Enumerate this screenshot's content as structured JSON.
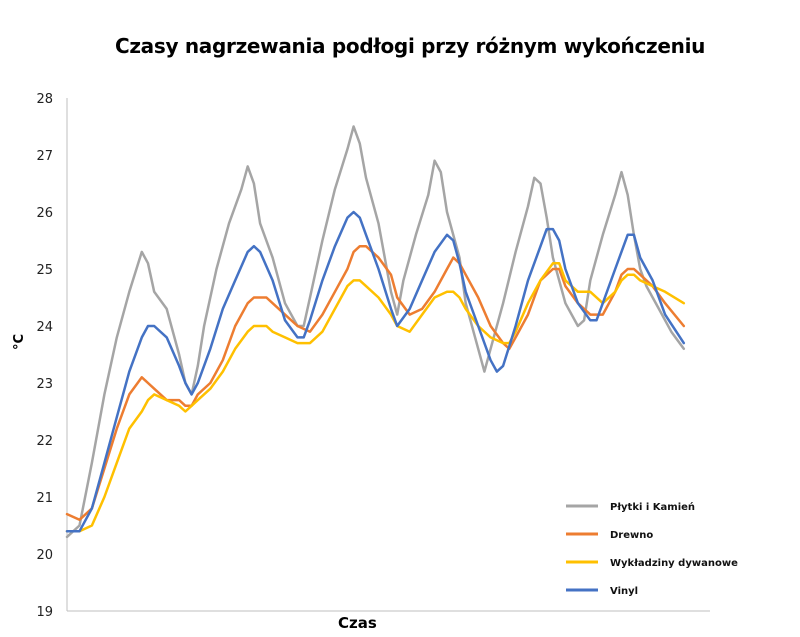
{
  "chart_data": {
    "type": "line",
    "title": "Czasy nagrzewania podłogi przy różnym wykończeniu",
    "xlabel": "Czas",
    "ylabel": "°C",
    "ylim": [
      19,
      28
    ],
    "yticks": [
      "19",
      "20",
      "21",
      "22",
      "23",
      "24",
      "25",
      "26",
      "27",
      "28"
    ],
    "xlim": [
      0,
      100
    ],
    "grid": false,
    "legend": "right",
    "series": [
      {
        "name": "Płytki i Kamień",
        "color": "#a5a5a5",
        "points": [
          [
            0,
            20.3
          ],
          [
            2,
            20.5
          ],
          [
            4,
            21.6
          ],
          [
            6,
            22.8
          ],
          [
            8,
            23.8
          ],
          [
            10,
            24.6
          ],
          [
            12,
            25.3
          ],
          [
            13,
            25.1
          ],
          [
            14,
            24.6
          ],
          [
            16,
            24.3
          ],
          [
            18,
            23.5
          ],
          [
            19,
            23.0
          ],
          [
            20,
            22.8
          ],
          [
            21,
            23.3
          ],
          [
            22,
            24.0
          ],
          [
            24,
            25.0
          ],
          [
            26,
            25.8
          ],
          [
            28,
            26.4
          ],
          [
            29,
            26.8
          ],
          [
            30,
            26.5
          ],
          [
            31,
            25.8
          ],
          [
            33,
            25.2
          ],
          [
            35,
            24.4
          ],
          [
            37,
            24.0
          ],
          [
            38,
            24.0
          ],
          [
            39,
            24.5
          ],
          [
            41,
            25.5
          ],
          [
            43,
            26.4
          ],
          [
            45,
            27.1
          ],
          [
            46,
            27.5
          ],
          [
            47,
            27.2
          ],
          [
            48,
            26.6
          ],
          [
            50,
            25.8
          ],
          [
            52,
            24.6
          ],
          [
            53,
            24.2
          ],
          [
            54,
            24.8
          ],
          [
            56,
            25.6
          ],
          [
            58,
            26.3
          ],
          [
            59,
            26.9
          ],
          [
            60,
            26.7
          ],
          [
            61,
            26.0
          ],
          [
            63,
            25.2
          ],
          [
            64,
            24.4
          ],
          [
            66,
            23.6
          ],
          [
            67,
            23.2
          ],
          [
            68,
            23.6
          ],
          [
            70,
            24.4
          ],
          [
            72,
            25.3
          ],
          [
            74,
            26.1
          ],
          [
            75,
            26.6
          ],
          [
            76,
            26.5
          ],
          [
            77,
            25.9
          ],
          [
            78,
            25.2
          ],
          [
            80,
            24.4
          ],
          [
            82,
            24.0
          ],
          [
            83,
            24.1
          ],
          [
            84,
            24.8
          ],
          [
            86,
            25.6
          ],
          [
            88,
            26.3
          ],
          [
            89,
            26.7
          ],
          [
            90,
            26.3
          ],
          [
            91,
            25.6
          ],
          [
            92,
            25.0
          ],
          [
            93,
            24.7
          ],
          [
            95,
            24.3
          ],
          [
            97,
            23.9
          ],
          [
            99,
            23.6
          ]
        ]
      },
      {
        "name": "Drewno",
        "color": "#ed7d31",
        "points": [
          [
            0,
            20.7
          ],
          [
            2,
            20.6
          ],
          [
            4,
            20.8
          ],
          [
            6,
            21.5
          ],
          [
            8,
            22.2
          ],
          [
            10,
            22.8
          ],
          [
            12,
            23.1
          ],
          [
            13,
            23.0
          ],
          [
            14,
            22.9
          ],
          [
            16,
            22.7
          ],
          [
            18,
            22.7
          ],
          [
            19,
            22.6
          ],
          [
            20,
            22.6
          ],
          [
            21,
            22.8
          ],
          [
            23,
            23.0
          ],
          [
            25,
            23.4
          ],
          [
            27,
            24.0
          ],
          [
            29,
            24.4
          ],
          [
            30,
            24.5
          ],
          [
            32,
            24.5
          ],
          [
            33,
            24.4
          ],
          [
            35,
            24.2
          ],
          [
            37,
            24.0
          ],
          [
            39,
            23.9
          ],
          [
            41,
            24.2
          ],
          [
            43,
            24.6
          ],
          [
            45,
            25.0
          ],
          [
            46,
            25.3
          ],
          [
            47,
            25.4
          ],
          [
            48,
            25.4
          ],
          [
            50,
            25.2
          ],
          [
            52,
            24.9
          ],
          [
            53,
            24.5
          ],
          [
            55,
            24.2
          ],
          [
            57,
            24.3
          ],
          [
            59,
            24.6
          ],
          [
            61,
            25.0
          ],
          [
            62,
            25.2
          ],
          [
            63,
            25.1
          ],
          [
            64,
            24.9
          ],
          [
            66,
            24.5
          ],
          [
            68,
            24.0
          ],
          [
            70,
            23.7
          ],
          [
            71,
            23.6
          ],
          [
            72,
            23.8
          ],
          [
            74,
            24.2
          ],
          [
            76,
            24.8
          ],
          [
            78,
            25.0
          ],
          [
            79,
            25.0
          ],
          [
            80,
            24.7
          ],
          [
            82,
            24.4
          ],
          [
            84,
            24.2
          ],
          [
            86,
            24.2
          ],
          [
            88,
            24.6
          ],
          [
            89,
            24.9
          ],
          [
            90,
            25.0
          ],
          [
            91,
            25.0
          ],
          [
            92,
            24.9
          ],
          [
            94,
            24.7
          ],
          [
            96,
            24.4
          ],
          [
            99,
            24.0
          ]
        ]
      },
      {
        "name": "Wykładziny dywanowe",
        "color": "#ffc000",
        "points": [
          [
            0,
            20.4
          ],
          [
            2,
            20.4
          ],
          [
            4,
            20.5
          ],
          [
            6,
            21.0
          ],
          [
            8,
            21.6
          ],
          [
            10,
            22.2
          ],
          [
            12,
            22.5
          ],
          [
            13,
            22.7
          ],
          [
            14,
            22.8
          ],
          [
            16,
            22.7
          ],
          [
            18,
            22.6
          ],
          [
            19,
            22.5
          ],
          [
            20,
            22.6
          ],
          [
            21,
            22.7
          ],
          [
            23,
            22.9
          ],
          [
            25,
            23.2
          ],
          [
            27,
            23.6
          ],
          [
            29,
            23.9
          ],
          [
            30,
            24.0
          ],
          [
            32,
            24.0
          ],
          [
            33,
            23.9
          ],
          [
            35,
            23.8
          ],
          [
            37,
            23.7
          ],
          [
            39,
            23.7
          ],
          [
            41,
            23.9
          ],
          [
            43,
            24.3
          ],
          [
            45,
            24.7
          ],
          [
            46,
            24.8
          ],
          [
            47,
            24.8
          ],
          [
            48,
            24.7
          ],
          [
            50,
            24.5
          ],
          [
            52,
            24.2
          ],
          [
            53,
            24.0
          ],
          [
            55,
            23.9
          ],
          [
            57,
            24.2
          ],
          [
            59,
            24.5
          ],
          [
            61,
            24.6
          ],
          [
            62,
            24.6
          ],
          [
            63,
            24.5
          ],
          [
            64,
            24.3
          ],
          [
            66,
            24.0
          ],
          [
            68,
            23.8
          ],
          [
            70,
            23.7
          ],
          [
            71,
            23.7
          ],
          [
            72,
            23.9
          ],
          [
            74,
            24.4
          ],
          [
            76,
            24.8
          ],
          [
            78,
            25.1
          ],
          [
            79,
            25.1
          ],
          [
            80,
            24.8
          ],
          [
            82,
            24.6
          ],
          [
            84,
            24.6
          ],
          [
            86,
            24.4
          ],
          [
            88,
            24.6
          ],
          [
            89,
            24.8
          ],
          [
            90,
            24.9
          ],
          [
            91,
            24.9
          ],
          [
            92,
            24.8
          ],
          [
            94,
            24.7
          ],
          [
            96,
            24.6
          ],
          [
            99,
            24.4
          ]
        ]
      },
      {
        "name": "Vinyl",
        "color": "#4472c4",
        "points": [
          [
            0,
            20.4
          ],
          [
            2,
            20.4
          ],
          [
            4,
            20.8
          ],
          [
            6,
            21.6
          ],
          [
            8,
            22.4
          ],
          [
            10,
            23.2
          ],
          [
            12,
            23.8
          ],
          [
            13,
            24.0
          ],
          [
            14,
            24.0
          ],
          [
            16,
            23.8
          ],
          [
            18,
            23.3
          ],
          [
            19,
            23.0
          ],
          [
            20,
            22.8
          ],
          [
            21,
            23.0
          ],
          [
            23,
            23.6
          ],
          [
            25,
            24.3
          ],
          [
            27,
            24.8
          ],
          [
            29,
            25.3
          ],
          [
            30,
            25.4
          ],
          [
            31,
            25.3
          ],
          [
            33,
            24.8
          ],
          [
            35,
            24.1
          ],
          [
            37,
            23.8
          ],
          [
            38,
            23.8
          ],
          [
            39,
            24.1
          ],
          [
            41,
            24.8
          ],
          [
            43,
            25.4
          ],
          [
            45,
            25.9
          ],
          [
            46,
            26.0
          ],
          [
            47,
            25.9
          ],
          [
            48,
            25.6
          ],
          [
            50,
            25.0
          ],
          [
            52,
            24.3
          ],
          [
            53,
            24.0
          ],
          [
            55,
            24.3
          ],
          [
            57,
            24.8
          ],
          [
            59,
            25.3
          ],
          [
            61,
            25.6
          ],
          [
            62,
            25.5
          ],
          [
            63,
            25.1
          ],
          [
            64,
            24.6
          ],
          [
            66,
            24.0
          ],
          [
            68,
            23.4
          ],
          [
            69,
            23.2
          ],
          [
            70,
            23.3
          ],
          [
            72,
            24.0
          ],
          [
            74,
            24.8
          ],
          [
            76,
            25.4
          ],
          [
            77,
            25.7
          ],
          [
            78,
            25.7
          ],
          [
            79,
            25.5
          ],
          [
            80,
            25.0
          ],
          [
            82,
            24.4
          ],
          [
            84,
            24.1
          ],
          [
            85,
            24.1
          ],
          [
            86,
            24.4
          ],
          [
            88,
            25.0
          ],
          [
            90,
            25.6
          ],
          [
            91,
            25.6
          ],
          [
            92,
            25.2
          ],
          [
            94,
            24.8
          ],
          [
            96,
            24.2
          ],
          [
            99,
            23.7
          ]
        ]
      }
    ]
  }
}
